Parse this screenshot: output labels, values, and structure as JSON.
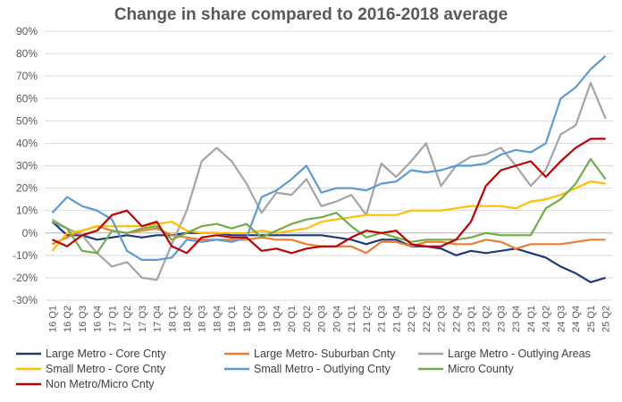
{
  "chart_data": {
    "type": "line",
    "title": "Change in share compared to 2016-2018 average",
    "xlabel": "",
    "ylabel": "",
    "ylim": [
      -30,
      90
    ],
    "y_unit": "%",
    "yticks": [
      90,
      80,
      70,
      60,
      50,
      40,
      30,
      20,
      10,
      0,
      -10,
      -20,
      -30
    ],
    "ytick_labels": [
      "90%",
      "80%",
      "70%",
      "60%",
      "50%",
      "40%",
      "30%",
      "20%",
      "10%",
      "0%",
      "-10%",
      "-20%",
      "-30%"
    ],
    "grid": true,
    "legend_position": "bottom",
    "categories": [
      "16 Q1",
      "16 Q2",
      "16 Q3",
      "16 Q4",
      "17 Q1",
      "17 Q2",
      "17 Q3",
      "17 Q4",
      "18 Q1",
      "18 Q2",
      "18 Q3",
      "18 Q4",
      "19 Q1",
      "19 Q2",
      "19 Q3",
      "19 Q4",
      "20 Q1",
      "20 Q2",
      "20 Q3",
      "20 Q4",
      "21 Q1",
      "21 Q2",
      "21 Q3",
      "21 Q4",
      "22 Q1",
      "22 Q2",
      "22 Q3",
      "22 Q4",
      "23 Q1",
      "23 Q2",
      "23 Q3",
      "23 Q4",
      "24 Q1",
      "24 Q2",
      "24 Q3",
      "24 Q4",
      "25 Q1",
      "25 Q2"
    ],
    "series": [
      {
        "name": "Large Metro - Core Cnty",
        "color": "#1f3a7a",
        "values": [
          5,
          -1,
          -1,
          -3,
          -2,
          -1,
          -2,
          -1,
          -1,
          0,
          0,
          0,
          -1,
          -1,
          -1,
          -1,
          -1,
          -1,
          -1,
          -2,
          -3,
          -5,
          -3,
          -3,
          -6,
          -6,
          -7,
          -10,
          -8,
          -9,
          -8,
          -7,
          -9,
          -11,
          -15,
          -18,
          -22,
          -20
        ]
      },
      {
        "name": "Large Metro- Suburban Cnty",
        "color": "#ed7d31",
        "values": [
          -5,
          -2,
          1,
          3,
          1,
          0,
          1,
          2,
          -1,
          -2,
          -3,
          -3,
          -3,
          -3,
          -2,
          -3,
          -3,
          -5,
          -6,
          -6,
          -6,
          -9,
          -4,
          -4,
          -6,
          -4,
          -4,
          -5,
          -5,
          -3,
          -4,
          -7,
          -5,
          -5,
          -5,
          -4,
          -3,
          -3
        ]
      },
      {
        "name": "Large Metro - Outlying Areas",
        "color": "#a5a5a5",
        "values": [
          6,
          2,
          -1,
          -9,
          -15,
          -13,
          -20,
          -21,
          -5,
          10,
          32,
          38,
          32,
          22,
          9,
          18,
          17,
          24,
          12,
          14,
          17,
          8,
          31,
          25,
          32,
          40,
          21,
          30,
          34,
          35,
          38,
          30,
          21,
          28,
          44,
          48,
          67,
          51
        ]
      },
      {
        "name": "Small Metro - Core Cnty",
        "color": "#ffc000",
        "values": [
          -8,
          0,
          1,
          3,
          3,
          3,
          3,
          4,
          5,
          1,
          0,
          0,
          0,
          0,
          1,
          0,
          1,
          2,
          5,
          6,
          7,
          8,
          8,
          8,
          10,
          10,
          10,
          11,
          12,
          12,
          12,
          11,
          14,
          15,
          17,
          20,
          23,
          22
        ]
      },
      {
        "name": "Small Metro - Outlying Cnty",
        "color": "#5b9bd5",
        "values": [
          9,
          16,
          12,
          10,
          6,
          -8,
          -12,
          -12,
          -11,
          -3,
          -4,
          -3,
          -4,
          -2,
          16,
          19,
          24,
          30,
          18,
          20,
          20,
          19,
          22,
          23,
          28,
          27,
          28,
          30,
          30,
          31,
          35,
          37,
          36,
          40,
          60,
          65,
          73,
          79
        ]
      },
      {
        "name": "Micro County",
        "color": "#70ad47",
        "values": [
          5,
          2,
          -8,
          -9,
          1,
          0,
          2,
          3,
          -3,
          0,
          3,
          4,
          2,
          4,
          -2,
          1,
          4,
          6,
          7,
          9,
          3,
          -2,
          0,
          -2,
          -4,
          -3,
          -3,
          -3,
          -2,
          0,
          -1,
          -1,
          -1,
          11,
          15,
          22,
          33,
          24
        ]
      },
      {
        "name": "Non Metro/Micro Cnty",
        "color": "#c00000",
        "values": [
          -3,
          -6,
          -1,
          1,
          8,
          10,
          3,
          5,
          -6,
          -9,
          -2,
          -1,
          -2,
          -2,
          -8,
          -7,
          -9,
          -7,
          -6,
          -6,
          -2,
          1,
          0,
          1,
          -5,
          -6,
          -6,
          -3,
          5,
          21,
          28,
          30,
          32,
          25,
          32,
          38,
          42,
          42
        ]
      }
    ]
  }
}
